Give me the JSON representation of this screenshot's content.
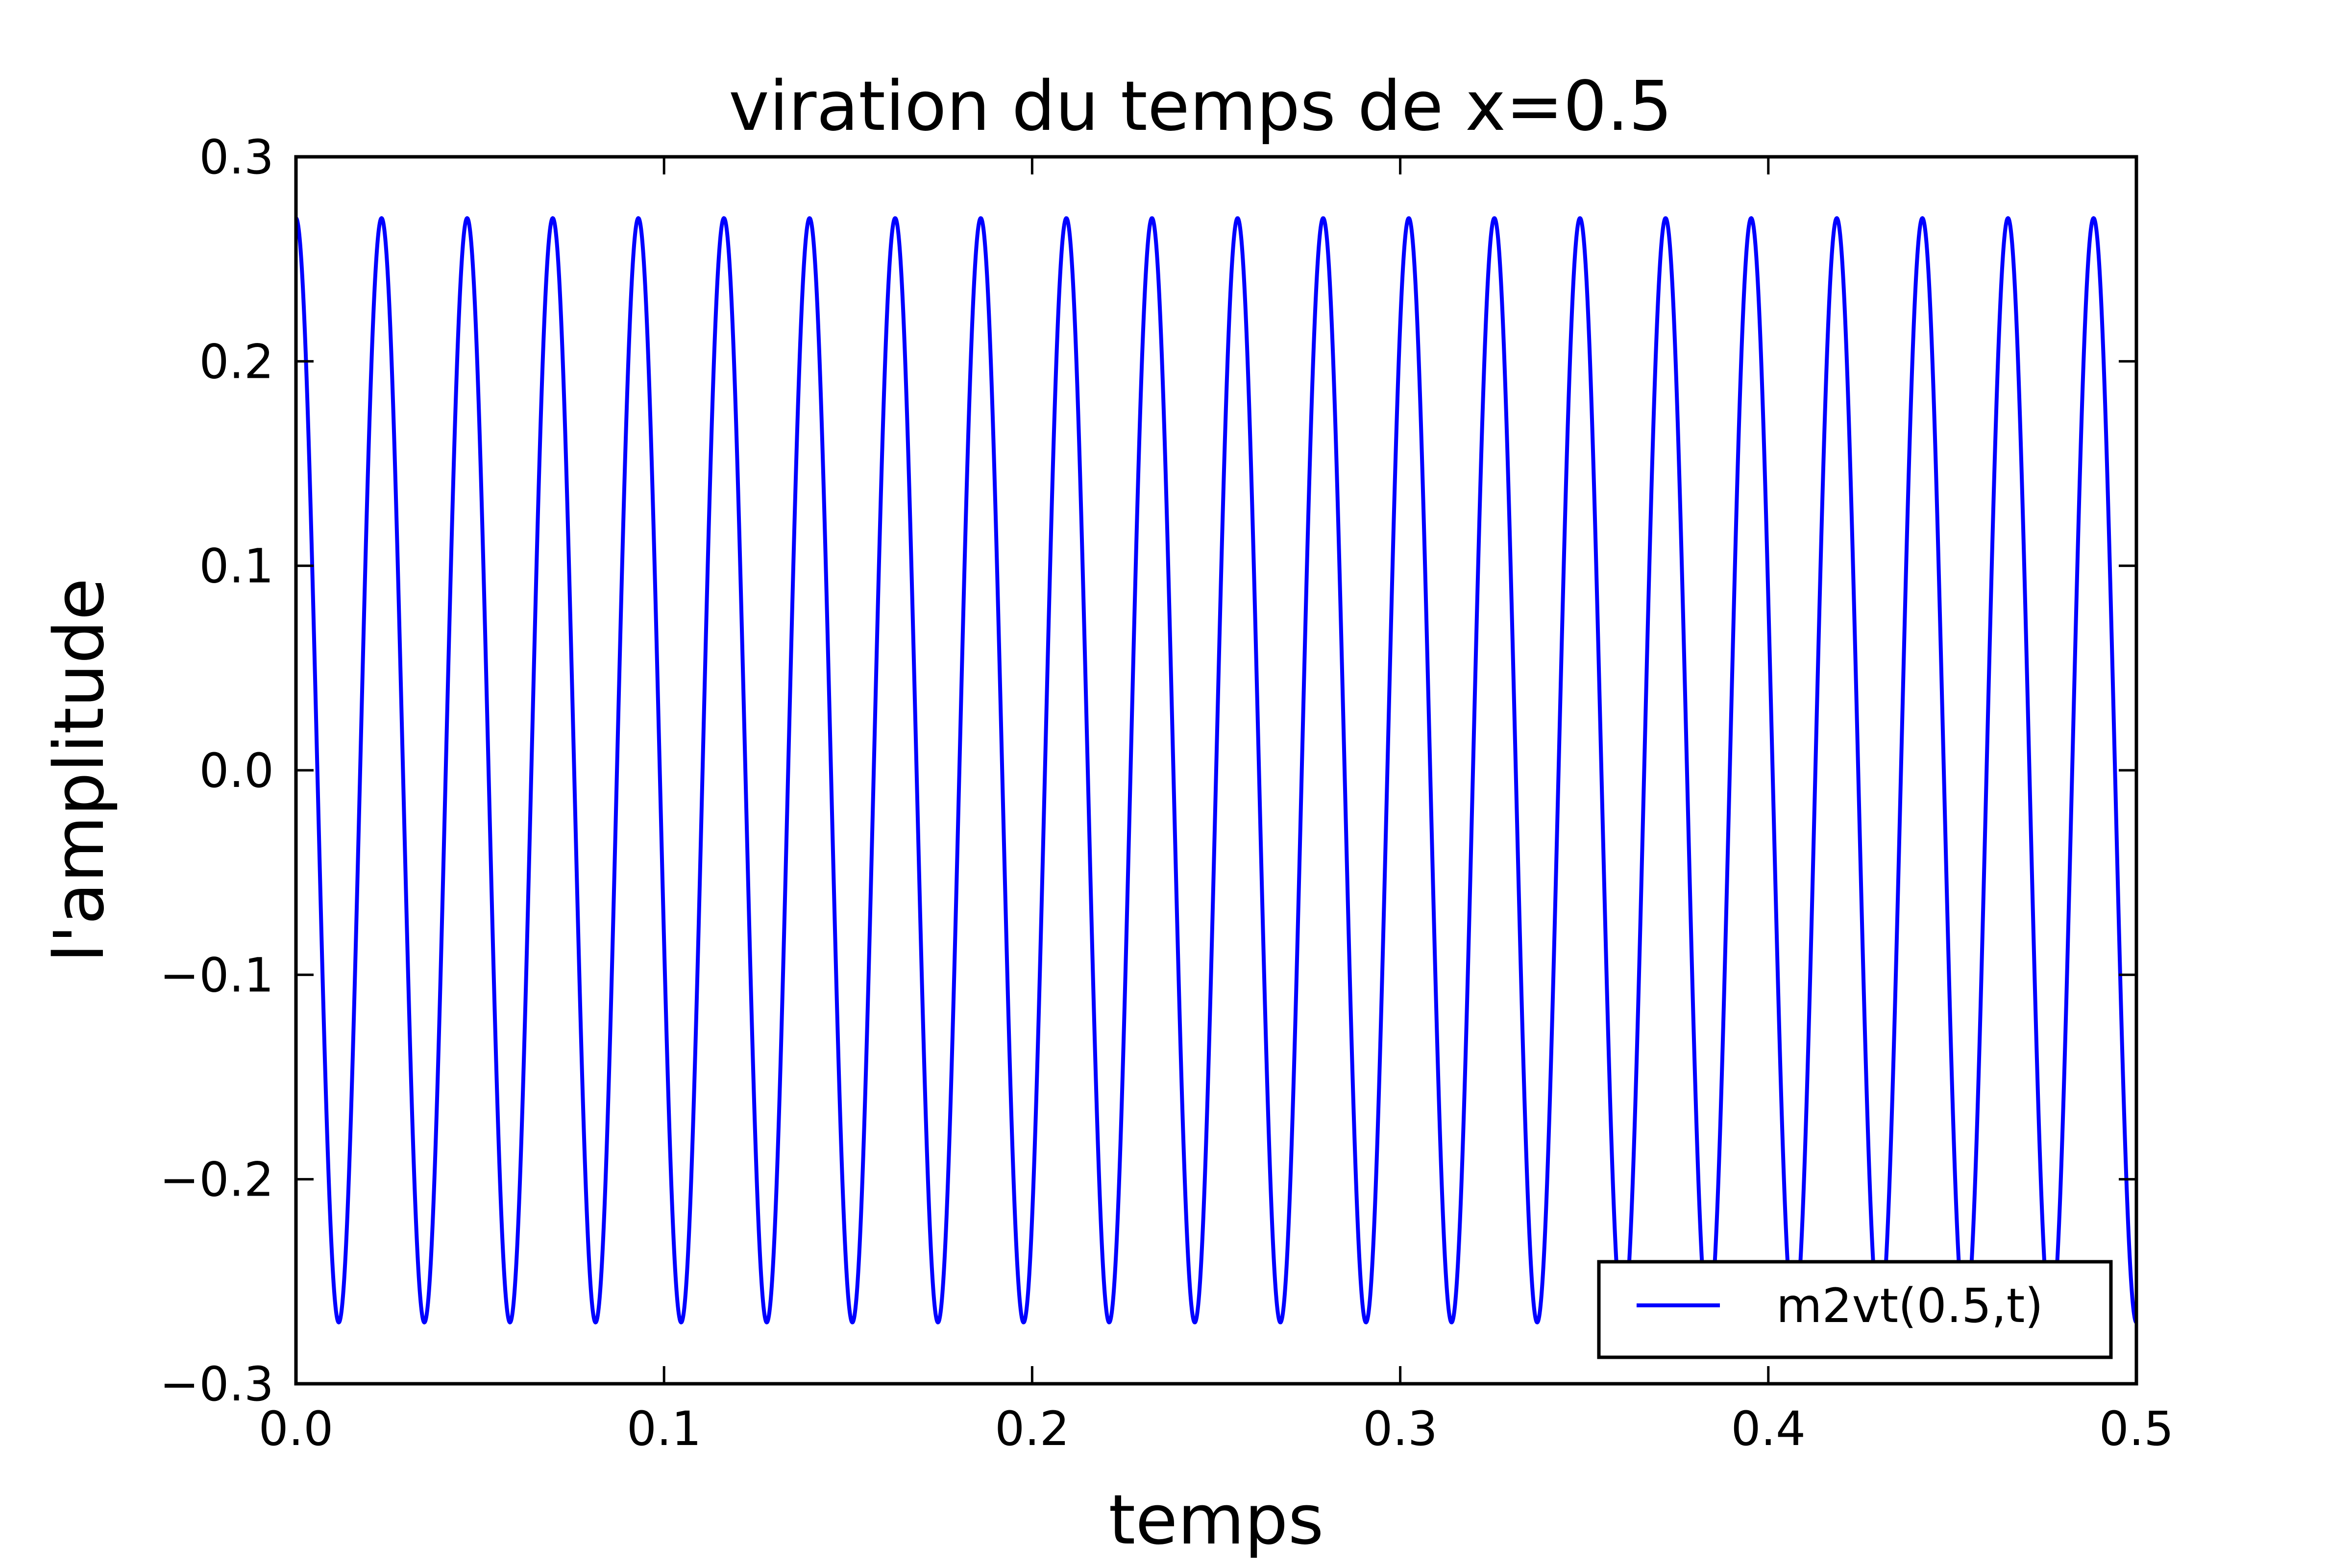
{
  "chart_data": {
    "type": "line",
    "title": "viration du temps de x=0.5",
    "xlabel": "temps",
    "ylabel": "l'amplitude",
    "xlim": [
      0.0,
      0.5
    ],
    "ylim": [
      -0.3,
      0.3
    ],
    "xticks": [
      0.0,
      0.1,
      0.2,
      0.3,
      0.4,
      0.5
    ],
    "xtick_labels": [
      "0.0",
      "0.1",
      "0.2",
      "0.3",
      "0.4",
      "0.5"
    ],
    "yticks": [
      -0.3,
      -0.2,
      -0.1,
      0.0,
      0.1,
      0.2,
      0.3
    ],
    "ytick_labels": [
      "−0.3",
      "−0.2",
      "−0.1",
      "0.0",
      "0.1",
      "0.2",
      "0.3"
    ],
    "grid": false,
    "legend_position": "lower-right",
    "series": [
      {
        "name": "m2vt(0.5,t)",
        "color": "#0000ff",
        "amplitude": 0.27,
        "frequency": 43,
        "phase": "cos",
        "samples": 4000
      }
    ]
  }
}
